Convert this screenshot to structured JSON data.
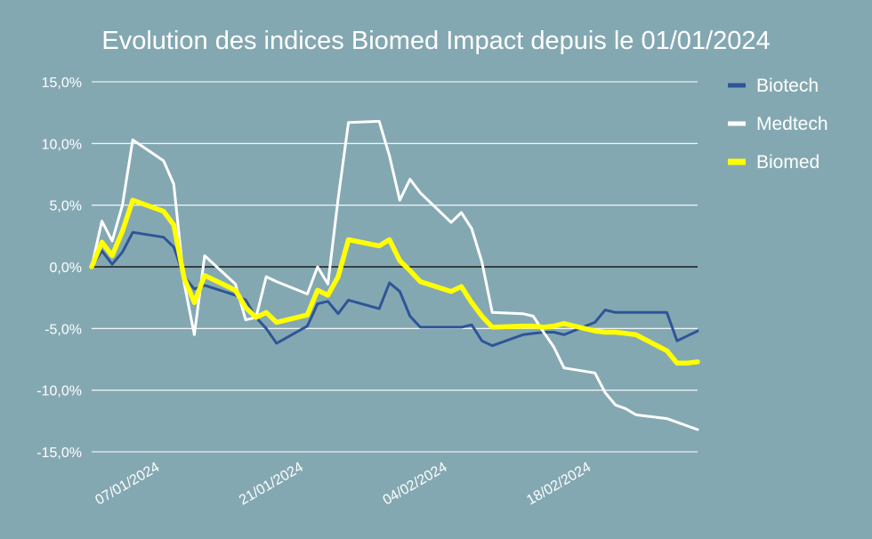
{
  "chart_data": {
    "type": "line",
    "title": "Evolution des indices Biomed Impact depuis le 01/01/2024",
    "xlabel": "",
    "ylabel": "",
    "ylim": [
      -15,
      15
    ],
    "y_ticks": [
      15,
      10,
      5,
      0,
      -5,
      -10,
      -15
    ],
    "y_tick_labels": [
      "15,0%",
      "10,0%",
      "5,0%",
      "0,0%",
      "-5,0%",
      "-10,0%",
      "-15,0%"
    ],
    "x_range": [
      1,
      60
    ],
    "x_tick_positions": [
      7,
      21,
      35,
      49
    ],
    "x_tick_labels": [
      "07/01/2024",
      "21/01/2024",
      "04/02/2024",
      "18/02/2024"
    ],
    "legend_position": "right",
    "grid": true,
    "series": [
      {
        "name": "Biotech",
        "color": "#2e5597",
        "x": [
          1,
          2,
          3,
          4,
          5,
          8,
          9,
          10,
          11,
          12,
          15,
          16,
          17,
          18,
          19,
          22,
          23,
          24,
          25,
          26,
          29,
          30,
          31,
          32,
          33,
          36,
          37,
          38,
          39,
          40,
          43,
          44,
          45,
          46,
          47,
          50,
          51,
          52,
          53,
          54,
          57,
          58,
          59,
          60
        ],
        "y": [
          0.0,
          1.3,
          0.2,
          1.2,
          2.8,
          2.4,
          1.6,
          -0.8,
          -1.8,
          -1.5,
          -2.3,
          -2.7,
          -4.1,
          -5.0,
          -6.2,
          -4.8,
          -3.0,
          -2.8,
          -3.8,
          -2.7,
          -3.4,
          -1.3,
          -2.0,
          -4.0,
          -4.9,
          -4.9,
          -4.9,
          -4.7,
          -6.0,
          -6.4,
          -5.5,
          -5.4,
          -5.3,
          -5.3,
          -5.5,
          -4.5,
          -3.5,
          -3.7,
          -3.7,
          -3.7,
          -3.7,
          -6.0,
          -5.6,
          -5.2
        ]
      },
      {
        "name": "Medtech",
        "color": "#ffffff",
        "x": [
          1,
          2,
          3,
          4,
          5,
          8,
          9,
          10,
          11,
          12,
          15,
          16,
          17,
          18,
          19,
          22,
          23,
          24,
          25,
          26,
          29,
          30,
          31,
          32,
          33,
          36,
          37,
          38,
          39,
          40,
          43,
          44,
          45,
          46,
          47,
          50,
          51,
          52,
          53,
          54,
          57,
          58,
          59,
          60
        ],
        "y": [
          0.0,
          3.7,
          2.1,
          5.0,
          10.3,
          8.6,
          6.7,
          -1.3,
          -5.5,
          0.9,
          -1.4,
          -4.3,
          -4.1,
          -0.8,
          -1.2,
          -2.2,
          0.0,
          -1.4,
          5.5,
          11.7,
          11.8,
          9.0,
          5.4,
          7.1,
          6.0,
          3.6,
          4.4,
          3.1,
          0.4,
          -3.7,
          -3.8,
          -4.0,
          -5.3,
          -6.5,
          -8.2,
          -8.6,
          -10.2,
          -11.2,
          -11.5,
          -12.0,
          -12.3,
          -12.6,
          -12.9,
          -13.2
        ]
      },
      {
        "name": "Biomed",
        "color": "#ffff00",
        "x": [
          1,
          2,
          3,
          4,
          5,
          8,
          9,
          10,
          11,
          12,
          15,
          16,
          17,
          18,
          19,
          22,
          23,
          24,
          25,
          26,
          29,
          30,
          31,
          32,
          33,
          36,
          37,
          38,
          39,
          40,
          43,
          44,
          45,
          46,
          47,
          50,
          51,
          52,
          53,
          54,
          57,
          58,
          59,
          60
        ],
        "y": [
          0.0,
          2.0,
          0.9,
          2.9,
          5.4,
          4.5,
          3.4,
          -0.9,
          -2.9,
          -0.7,
          -1.9,
          -3.3,
          -4.1,
          -3.7,
          -4.5,
          -3.9,
          -1.9,
          -2.3,
          -0.8,
          2.2,
          1.7,
          2.2,
          0.5,
          -0.3,
          -1.2,
          -2.0,
          -1.6,
          -2.9,
          -4.0,
          -4.9,
          -4.8,
          -4.8,
          -4.9,
          -4.8,
          -4.6,
          -5.2,
          -5.3,
          -5.3,
          -5.4,
          -5.5,
          -6.8,
          -7.8,
          -7.8,
          -7.7
        ]
      }
    ]
  }
}
